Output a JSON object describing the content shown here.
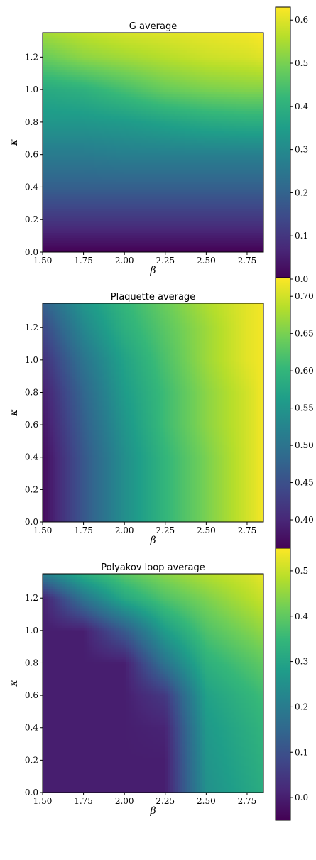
{
  "chart_data": [
    {
      "type": "heatmap",
      "title": "G average",
      "xlabel": "β",
      "ylabel": "κ",
      "xlim": [
        1.5,
        2.85
      ],
      "ylim": [
        0.0,
        1.35
      ],
      "xticks": [
        "1.50",
        "1.75",
        "2.00",
        "2.25",
        "2.50",
        "2.75"
      ],
      "xtick_values": [
        1.5,
        1.75,
        2.0,
        2.25,
        2.5,
        2.75
      ],
      "yticks": [
        "0.0",
        "0.2",
        "0.4",
        "0.6",
        "0.8",
        "1.0",
        "1.2"
      ],
      "ytick_values": [
        0.0,
        0.2,
        0.4,
        0.6,
        0.8,
        1.0,
        1.2
      ],
      "colorbar": {
        "colormap": "viridis",
        "range": [
          0.0,
          0.63
        ],
        "ticks": [
          "0.0",
          "0.1",
          "0.2",
          "0.3",
          "0.4",
          "0.5",
          "0.6"
        ],
        "tick_values": [
          0.0,
          0.1,
          0.2,
          0.3,
          0.4,
          0.5,
          0.6
        ]
      },
      "beta": [
        1.5,
        1.75,
        2.0,
        2.25,
        2.5,
        2.75,
        2.85
      ],
      "kappa": [
        0.0,
        0.2,
        0.4,
        0.6,
        0.8,
        1.0,
        1.2,
        1.35
      ],
      "values": [
        [
          0.0,
          0.0,
          0.0,
          0.0,
          0.0,
          0.0,
          0.0
        ],
        [
          0.1,
          0.1,
          0.1,
          0.1,
          0.1,
          0.1,
          0.1
        ],
        [
          0.19,
          0.19,
          0.19,
          0.19,
          0.19,
          0.19,
          0.19
        ],
        [
          0.26,
          0.26,
          0.27,
          0.27,
          0.27,
          0.27,
          0.27
        ],
        [
          0.33,
          0.33,
          0.34,
          0.36,
          0.38,
          0.39,
          0.39
        ],
        [
          0.38,
          0.4,
          0.44,
          0.48,
          0.5,
          0.51,
          0.51
        ],
        [
          0.48,
          0.52,
          0.54,
          0.56,
          0.58,
          0.59,
          0.6
        ],
        [
          0.54,
          0.57,
          0.59,
          0.6,
          0.61,
          0.62,
          0.63
        ]
      ]
    },
    {
      "type": "heatmap",
      "title": "Plaquette average",
      "xlabel": "β",
      "ylabel": "κ",
      "xlim": [
        1.5,
        2.85
      ],
      "ylim": [
        0.0,
        1.35
      ],
      "xticks": [
        "1.50",
        "1.75",
        "2.00",
        "2.25",
        "2.50",
        "2.75"
      ],
      "xtick_values": [
        1.5,
        1.75,
        2.0,
        2.25,
        2.5,
        2.75
      ],
      "yticks": [
        "0.0",
        "0.2",
        "0.4",
        "0.6",
        "0.8",
        "1.0",
        "1.2"
      ],
      "ytick_values": [
        0.0,
        0.2,
        0.4,
        0.6,
        0.8,
        1.0,
        1.2
      ],
      "colorbar": {
        "colormap": "viridis",
        "range": [
          0.36,
          0.725
        ],
        "ticks": [
          "0.40",
          "0.45",
          "0.50",
          "0.55",
          "0.60",
          "0.65",
          "0.70"
        ],
        "tick_values": [
          0.4,
          0.45,
          0.5,
          0.55,
          0.6,
          0.65,
          0.7
        ]
      },
      "beta": [
        1.5,
        1.75,
        2.0,
        2.25,
        2.5,
        2.75,
        2.85
      ],
      "kappa": [
        0.0,
        0.2,
        0.4,
        0.6,
        0.8,
        1.0,
        1.2,
        1.35
      ],
      "values": [
        [
          0.37,
          0.46,
          0.54,
          0.6,
          0.65,
          0.7,
          0.72
        ],
        [
          0.37,
          0.46,
          0.54,
          0.6,
          0.65,
          0.7,
          0.72
        ],
        [
          0.37,
          0.46,
          0.54,
          0.6,
          0.65,
          0.7,
          0.72
        ],
        [
          0.38,
          0.47,
          0.55,
          0.61,
          0.66,
          0.7,
          0.72
        ],
        [
          0.39,
          0.48,
          0.56,
          0.61,
          0.66,
          0.7,
          0.72
        ],
        [
          0.41,
          0.5,
          0.57,
          0.62,
          0.67,
          0.71,
          0.72
        ],
        [
          0.44,
          0.53,
          0.59,
          0.63,
          0.67,
          0.71,
          0.72
        ],
        [
          0.47,
          0.55,
          0.6,
          0.64,
          0.68,
          0.71,
          0.72
        ]
      ]
    },
    {
      "type": "heatmap",
      "title": "Polyakov loop average",
      "xlabel": "β",
      "ylabel": "κ",
      "xlim": [
        1.5,
        2.85
      ],
      "ylim": [
        0.0,
        1.35
      ],
      "xticks": [
        "1.50",
        "1.75",
        "2.00",
        "2.25",
        "2.50",
        "2.75"
      ],
      "xtick_values": [
        1.5,
        1.75,
        2.0,
        2.25,
        2.5,
        2.75
      ],
      "yticks": [
        "0.0",
        "0.2",
        "0.4",
        "0.6",
        "0.8",
        "1.0",
        "1.2"
      ],
      "ytick_values": [
        0.0,
        0.2,
        0.4,
        0.6,
        0.8,
        1.0,
        1.2
      ],
      "colorbar": {
        "colormap": "viridis",
        "range": [
          -0.05,
          0.55
        ],
        "ticks": [
          "0.0",
          "0.1",
          "0.2",
          "0.3",
          "0.4",
          "0.5"
        ],
        "tick_values": [
          0.0,
          0.1,
          0.2,
          0.3,
          0.4,
          0.5
        ]
      },
      "beta": [
        1.5,
        1.75,
        2.0,
        2.25,
        2.5,
        2.75,
        2.85
      ],
      "kappa": [
        0.0,
        0.2,
        0.4,
        0.6,
        0.8,
        1.0,
        1.2,
        1.35
      ],
      "values": [
        [
          0.0,
          0.0,
          0.0,
          0.0,
          0.25,
          0.3,
          0.32
        ],
        [
          0.0,
          0.0,
          0.0,
          0.0,
          0.26,
          0.31,
          0.33
        ],
        [
          0.0,
          0.0,
          0.0,
          0.01,
          0.27,
          0.32,
          0.34
        ],
        [
          0.0,
          0.0,
          0.0,
          0.05,
          0.29,
          0.34,
          0.36
        ],
        [
          0.0,
          0.0,
          0.0,
          0.18,
          0.33,
          0.38,
          0.4
        ],
        [
          0.0,
          0.0,
          0.12,
          0.28,
          0.38,
          0.43,
          0.45
        ],
        [
          0.0,
          0.18,
          0.31,
          0.38,
          0.43,
          0.48,
          0.5
        ],
        [
          0.2,
          0.32,
          0.39,
          0.44,
          0.48,
          0.51,
          0.53
        ]
      ]
    }
  ]
}
